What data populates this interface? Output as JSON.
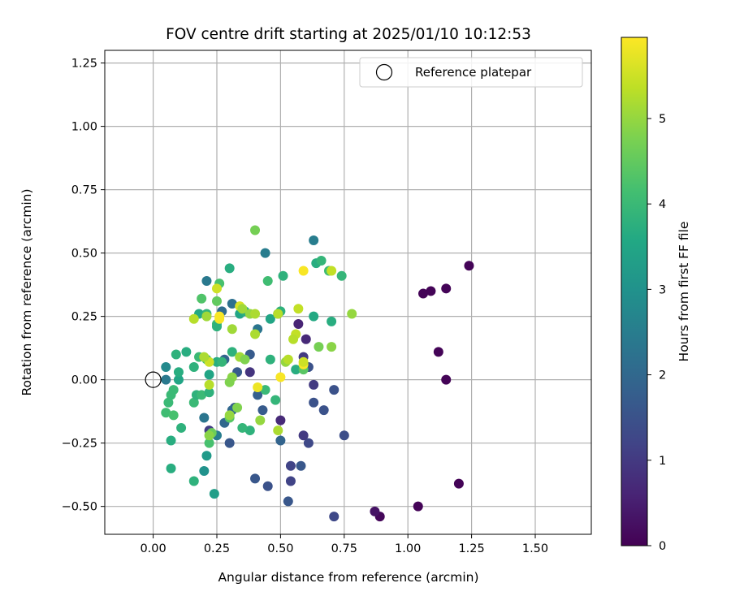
{
  "chart_data": {
    "type": "scatter",
    "title": "FOV centre drift starting at 2025/01/10 10:12:53",
    "xlabel": "Angular distance from reference (arcmin)",
    "ylabel": "Rotation from reference (arcmin)",
    "xlim": [
      -0.19,
      1.72
    ],
    "ylim": [
      -0.61,
      1.3
    ],
    "xticks": [
      "0.00",
      "0.25",
      "0.50",
      "0.75",
      "1.00",
      "1.25",
      "1.50"
    ],
    "yticks": [
      "−0.50",
      "−0.25",
      "0.00",
      "0.25",
      "0.50",
      "0.75",
      "1.00",
      "1.25"
    ],
    "grid": true,
    "legend": {
      "placement": "top-right",
      "label": "Reference platepar"
    },
    "reference_point": {
      "x": 0.0,
      "y": 0.0
    },
    "colorbar": {
      "label": "Hours from first FF file",
      "range": [
        0,
        5.95
      ],
      "ticks": [
        "0",
        "1",
        "2",
        "3",
        "4",
        "5"
      ],
      "colormap": "viridis"
    },
    "points": [
      [
        1.24,
        0.45,
        0.05
      ],
      [
        1.15,
        0.36,
        0.05
      ],
      [
        1.09,
        0.35,
        0.05
      ],
      [
        1.06,
        0.34,
        0.05
      ],
      [
        1.12,
        0.11,
        0.05
      ],
      [
        1.15,
        0.0,
        0.05
      ],
      [
        1.2,
        -0.41,
        0.05
      ],
      [
        1.04,
        -0.5,
        0.05
      ],
      [
        0.89,
        -0.54,
        0.1
      ],
      [
        0.87,
        -0.52,
        0.3
      ],
      [
        0.71,
        -0.54,
        1.3
      ],
      [
        0.75,
        -0.22,
        1.4
      ],
      [
        0.71,
        -0.04,
        1.5
      ],
      [
        0.67,
        -0.12,
        1.5
      ],
      [
        0.63,
        -0.09,
        1.5
      ],
      [
        0.63,
        -0.02,
        1.0
      ],
      [
        0.61,
        0.05,
        1.5
      ],
      [
        0.61,
        -0.25,
        1.3
      ],
      [
        0.59,
        -0.22,
        1.0
      ],
      [
        0.58,
        -0.34,
        1.6
      ],
      [
        0.54,
        -0.34,
        1.2
      ],
      [
        0.54,
        -0.4,
        1.2
      ],
      [
        0.53,
        -0.48,
        1.6
      ],
      [
        0.5,
        -0.24,
        1.9
      ],
      [
        0.5,
        -0.16,
        0.7
      ],
      [
        0.57,
        0.22,
        0.6
      ],
      [
        0.6,
        0.16,
        0.7
      ],
      [
        0.59,
        0.09,
        1.0
      ],
      [
        0.45,
        -0.42,
        1.5
      ],
      [
        0.4,
        -0.39,
        1.6
      ],
      [
        0.43,
        -0.12,
        1.7
      ],
      [
        0.41,
        -0.06,
        1.8
      ],
      [
        0.38,
        0.1,
        1.7
      ],
      [
        0.38,
        0.03,
        0.9
      ],
      [
        0.33,
        0.03,
        1.7
      ],
      [
        0.32,
        -0.11,
        1.7
      ],
      [
        0.3,
        -0.25,
        1.6
      ],
      [
        0.28,
        -0.17,
        2.0
      ],
      [
        0.22,
        -0.2,
        1.1
      ],
      [
        0.31,
        0.3,
        2.2
      ],
      [
        0.27,
        0.27,
        2.1
      ],
      [
        0.21,
        0.39,
        2.4
      ],
      [
        0.41,
        0.2,
        2.3
      ],
      [
        0.44,
        0.5,
        2.5
      ],
      [
        0.63,
        0.55,
        2.5
      ],
      [
        0.49,
        0.26,
        2.4
      ],
      [
        0.28,
        0.08,
        1.9
      ],
      [
        0.31,
        -0.12,
        2.0
      ],
      [
        0.2,
        -0.15,
        2.3
      ],
      [
        0.25,
        -0.22,
        2.5
      ],
      [
        0.2,
        -0.36,
        3.0
      ],
      [
        0.21,
        -0.3,
        3.2
      ],
      [
        0.24,
        -0.45,
        3.3
      ],
      [
        0.16,
        -0.4,
        3.8
      ],
      [
        0.07,
        -0.35,
        3.7
      ],
      [
        0.07,
        -0.24,
        3.7
      ],
      [
        0.11,
        -0.19,
        3.8
      ],
      [
        0.05,
        -0.13,
        4.1
      ],
      [
        0.08,
        -0.14,
        4.2
      ],
      [
        0.06,
        -0.09,
        4.0
      ],
      [
        0.07,
        -0.06,
        4.0
      ],
      [
        0.08,
        -0.04,
        4.0
      ],
      [
        0.05,
        0.0,
        2.4
      ],
      [
        0.05,
        0.05,
        2.8
      ],
      [
        0.1,
        0.0,
        3.5
      ],
      [
        0.09,
        0.1,
        3.8
      ],
      [
        0.13,
        0.11,
        3.7
      ],
      [
        0.1,
        0.03,
        3.7
      ],
      [
        0.16,
        0.05,
        3.8
      ],
      [
        0.16,
        -0.09,
        4.0
      ],
      [
        0.17,
        -0.06,
        3.8
      ],
      [
        0.19,
        -0.06,
        4.0
      ],
      [
        0.22,
        -0.05,
        3.8
      ],
      [
        0.18,
        0.09,
        4.0
      ],
      [
        0.21,
        0.08,
        4.1
      ],
      [
        0.22,
        0.02,
        3.5
      ],
      [
        0.25,
        0.07,
        3.7
      ],
      [
        0.27,
        0.07,
        3.9
      ],
      [
        0.31,
        0.11,
        3.8
      ],
      [
        0.25,
        0.22,
        4.0
      ],
      [
        0.25,
        0.21,
        3.8
      ],
      [
        0.18,
        0.26,
        3.6
      ],
      [
        0.21,
        0.26,
        3.9
      ],
      [
        0.19,
        0.32,
        4.3
      ],
      [
        0.25,
        0.31,
        4.5
      ],
      [
        0.26,
        0.38,
        4.2
      ],
      [
        0.3,
        0.44,
        3.7
      ],
      [
        0.34,
        0.26,
        3.5
      ],
      [
        0.36,
        0.27,
        3.7
      ],
      [
        0.46,
        0.24,
        3.5
      ],
      [
        0.46,
        0.08,
        3.8
      ],
      [
        0.45,
        0.39,
        4.1
      ],
      [
        0.51,
        0.41,
        3.8
      ],
      [
        0.5,
        0.27,
        3.8
      ],
      [
        0.48,
        -0.08,
        3.9
      ],
      [
        0.44,
        -0.04,
        4.0
      ],
      [
        0.38,
        -0.2,
        3.8
      ],
      [
        0.35,
        -0.19,
        3.9
      ],
      [
        0.3,
        -0.15,
        4.4
      ],
      [
        0.23,
        -0.21,
        4.6
      ],
      [
        0.22,
        -0.25,
        4.2
      ],
      [
        0.4,
        0.59,
        4.7
      ],
      [
        0.64,
        0.46,
        3.7
      ],
      [
        0.66,
        0.47,
        3.9
      ],
      [
        0.69,
        0.43,
        4.1
      ],
      [
        0.74,
        0.41,
        3.9
      ],
      [
        0.63,
        0.25,
        3.6
      ],
      [
        0.7,
        0.23,
        3.7
      ],
      [
        0.7,
        0.13,
        4.9
      ],
      [
        0.65,
        0.13,
        4.7
      ],
      [
        0.56,
        0.04,
        3.7
      ],
      [
        0.59,
        0.04,
        4.4
      ],
      [
        0.52,
        0.07,
        5.0
      ],
      [
        0.53,
        0.08,
        5.3
      ],
      [
        0.5,
        0.01,
        5.9
      ],
      [
        0.49,
        -0.2,
        5.2
      ],
      [
        0.42,
        -0.16,
        5.0
      ],
      [
        0.41,
        -0.03,
        5.8
      ],
      [
        0.34,
        0.09,
        5.1
      ],
      [
        0.36,
        0.08,
        4.8
      ],
      [
        0.31,
        0.01,
        4.9
      ],
      [
        0.3,
        -0.01,
        4.8
      ],
      [
        0.3,
        -0.14,
        5.0
      ],
      [
        0.33,
        -0.11,
        4.8
      ],
      [
        0.22,
        -0.22,
        4.9
      ],
      [
        0.22,
        0.07,
        5.5
      ],
      [
        0.22,
        -0.02,
        5.3
      ],
      [
        0.2,
        0.09,
        5.2
      ],
      [
        0.16,
        0.24,
        5.3
      ],
      [
        0.21,
        0.25,
        5.1
      ],
      [
        0.26,
        0.24,
        5.9
      ],
      [
        0.26,
        0.25,
        5.9
      ],
      [
        0.25,
        0.36,
        5.5
      ],
      [
        0.31,
        0.2,
        5.1
      ],
      [
        0.34,
        0.29,
        5.6
      ],
      [
        0.35,
        0.28,
        5.1
      ],
      [
        0.38,
        0.26,
        5.0
      ],
      [
        0.4,
        0.26,
        5.2
      ],
      [
        0.4,
        0.18,
        5.2
      ],
      [
        0.49,
        0.26,
        5.3
      ],
      [
        0.56,
        0.18,
        5.4
      ],
      [
        0.55,
        0.16,
        5.3
      ],
      [
        0.57,
        0.28,
        5.4
      ],
      [
        0.59,
        0.43,
        5.9
      ],
      [
        0.7,
        0.43,
        5.4
      ],
      [
        0.78,
        0.26,
        5.0
      ],
      [
        0.59,
        0.06,
        5.9
      ],
      [
        0.59,
        0.07,
        5.5
      ]
    ]
  }
}
